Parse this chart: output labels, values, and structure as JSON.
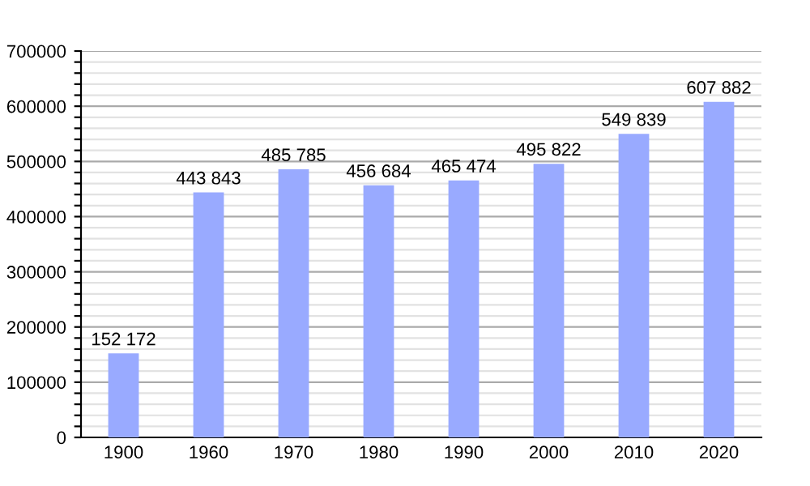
{
  "chart_data": {
    "type": "bar",
    "categories": [
      "1900",
      "1960",
      "1970",
      "1980",
      "1990",
      "2000",
      "2010",
      "2020"
    ],
    "values": [
      152172,
      443843,
      485785,
      456684,
      465474,
      495822,
      549839,
      607882
    ],
    "value_labels": [
      "152 172",
      "443 843",
      "485 785",
      "456 684",
      "465 474",
      "495 822",
      "549 839",
      "607 882"
    ],
    "color": "#99aaff",
    "ylim": [
      0,
      700000
    ],
    "yticks": [
      0,
      {
        "value": 20000,
        "label": null
      },
      {
        "value": 40000,
        "label": null
      },
      {
        "value": 60000,
        "label": null
      },
      {
        "value": 80000,
        "label": null
      },
      100000,
      {
        "value": 120000,
        "label": null
      },
      {
        "value": 140000,
        "label": null
      },
      {
        "value": 160000,
        "label": null
      },
      {
        "value": 180000,
        "label": null
      },
      200000,
      {
        "value": 220000,
        "label": null
      },
      {
        "value": 240000,
        "label": null
      },
      {
        "value": 260000,
        "label": null
      },
      {
        "value": 280000,
        "label": null
      },
      300000,
      {
        "value": 320000,
        "label": null
      },
      {
        "value": 340000,
        "label": null
      },
      {
        "value": 360000,
        "label": null
      },
      {
        "value": 380000,
        "label": null
      },
      400000,
      {
        "value": 420000,
        "label": null
      },
      {
        "value": 440000,
        "label": null
      },
      {
        "value": 460000,
        "label": null
      },
      {
        "value": 480000,
        "label": null
      },
      500000,
      {
        "value": 520000,
        "label": null
      },
      {
        "value": 540000,
        "label": null
      },
      {
        "value": 560000,
        "label": null
      },
      {
        "value": 580000,
        "label": null
      },
      600000,
      {
        "value": 620000,
        "label": null
      },
      {
        "value": 640000,
        "label": null
      },
      {
        "value": 660000,
        "label": null
      },
      {
        "value": 680000,
        "label": null
      },
      700000
    ],
    "grid": "y"
  }
}
